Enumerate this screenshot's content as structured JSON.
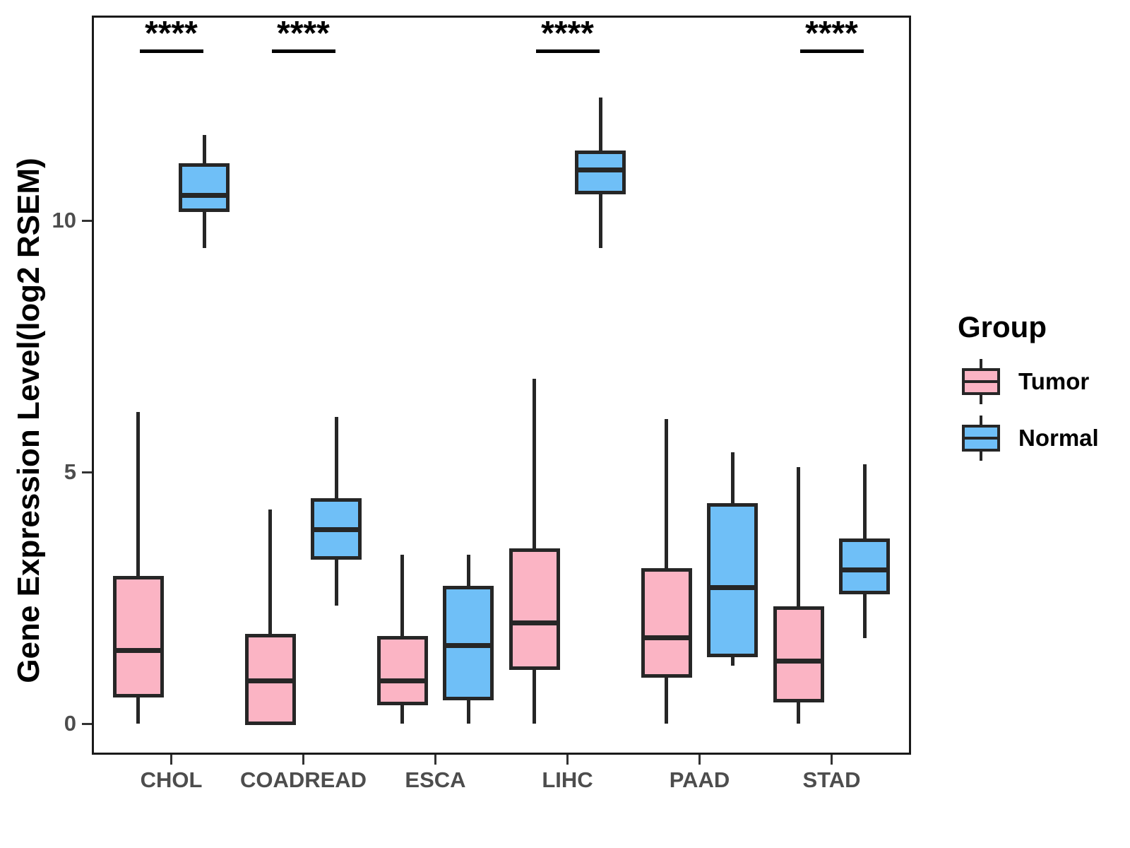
{
  "figure": {
    "background": "#ffffff",
    "panel_border_color": "#1a1a1a",
    "axis_text_color": "#4d4d4d",
    "box_outline_color": "#262626",
    "legend": {
      "title": "Group",
      "items": [
        {
          "label": "Tumor",
          "color": "#FBB4C4"
        },
        {
          "label": "Normal",
          "color": "#6FBFF7"
        }
      ]
    }
  },
  "chart_data": {
    "type": "boxplot",
    "title": "",
    "xlabel": "",
    "ylabel": "Gene Expression Level(log2 RSEM)",
    "ylim": [
      -0.6,
      14.1
    ],
    "grid": false,
    "legend_position": "right",
    "y_ticks": [
      {
        "value": 0,
        "label": "0"
      },
      {
        "value": 5,
        "label": "5"
      },
      {
        "value": 10,
        "label": "10"
      }
    ],
    "categories": [
      "CHOL",
      "COADREAD",
      "ESCA",
      "LIHC",
      "PAAD",
      "STAD"
    ],
    "significance": [
      "****",
      "****",
      null,
      "****",
      null,
      "****"
    ],
    "series": [
      {
        "name": "Tumor",
        "color": "#FBB4C4",
        "boxes": [
          {
            "min": 0,
            "q1": 0.55,
            "median": 1.45,
            "q3": 2.9,
            "max": 6.2
          },
          {
            "min": 0,
            "q1": 0,
            "median": 0.85,
            "q3": 1.75,
            "max": 4.25
          },
          {
            "min": 0,
            "q1": 0.4,
            "median": 0.85,
            "q3": 1.7,
            "max": 3.35
          },
          {
            "min": 0,
            "q1": 1.1,
            "median": 2.0,
            "q3": 3.45,
            "max": 6.85
          },
          {
            "min": 0,
            "q1": 0.95,
            "median": 1.7,
            "q3": 3.05,
            "max": 6.05
          },
          {
            "min": 0,
            "q1": 0.45,
            "median": 1.25,
            "q3": 2.3,
            "max": 5.1
          }
        ]
      },
      {
        "name": "Normal",
        "color": "#6FBFF7",
        "boxes": [
          {
            "min": 9.45,
            "q1": 10.2,
            "median": 10.5,
            "q3": 11.1,
            "max": 11.7
          },
          {
            "min": 2.35,
            "q1": 3.3,
            "median": 3.85,
            "q3": 4.45,
            "max": 6.1
          },
          {
            "min": 0,
            "q1": 0.5,
            "median": 1.55,
            "q3": 2.7,
            "max": 3.35
          },
          {
            "min": 9.45,
            "q1": 10.55,
            "median": 11.0,
            "q3": 11.35,
            "max": 12.45
          },
          {
            "min": 1.15,
            "q1": 1.35,
            "median": 2.7,
            "q3": 4.35,
            "max": 5.4
          },
          {
            "min": 1.7,
            "q1": 2.6,
            "median": 3.05,
            "q3": 3.65,
            "max": 5.15
          }
        ]
      }
    ]
  }
}
